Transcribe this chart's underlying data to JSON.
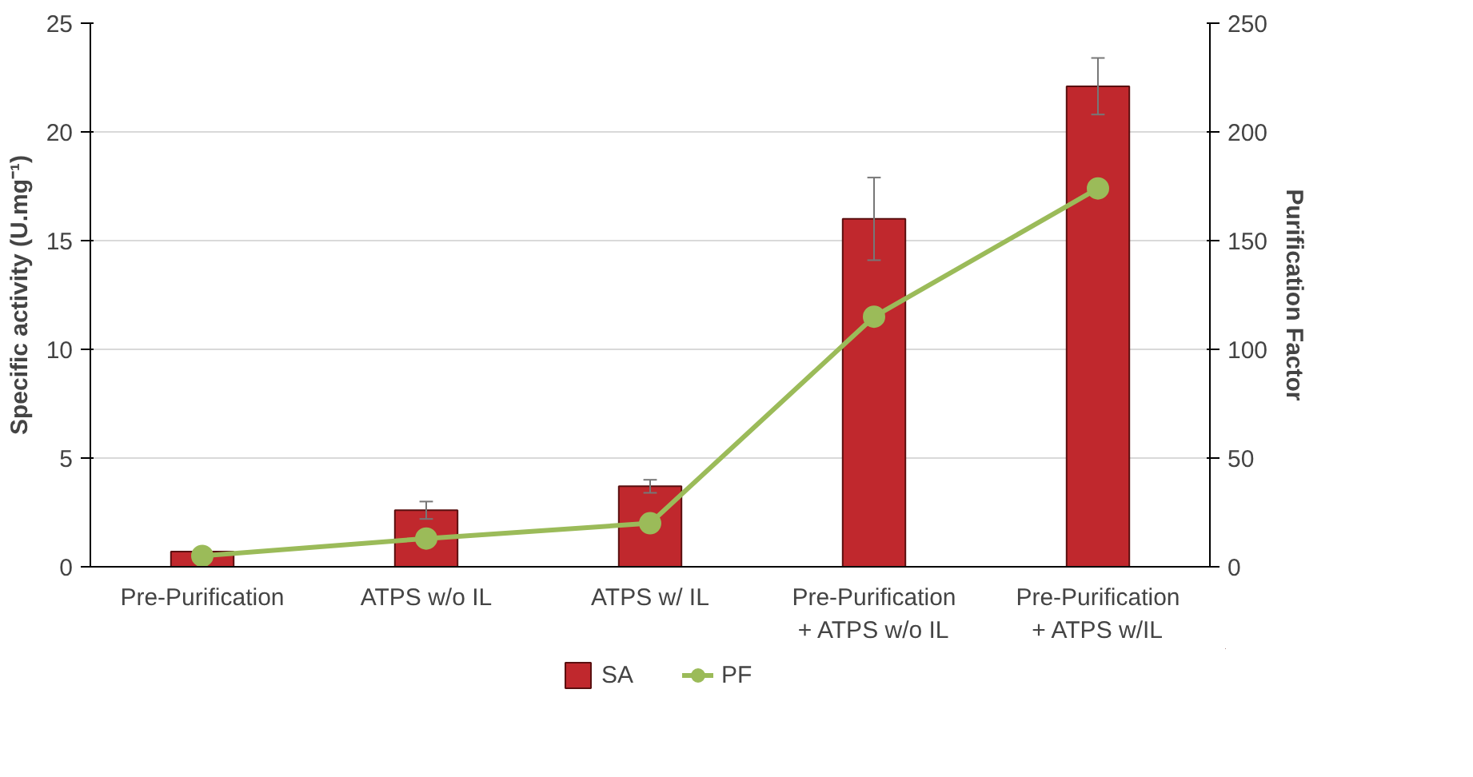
{
  "chart_data": {
    "type": "bar",
    "categories": [
      "Pre-Purification",
      "ATPS w/o IL",
      "ATPS w/ IL",
      "Pre-Purification\n+ ATPS w/o IL",
      "Pre-Purification\n+ ATPS w/IL"
    ],
    "ylabel": "Specific activity (U.mg⁻¹)",
    "y2label": "Purification Factor",
    "series": [
      {
        "name": "SA",
        "color": "#c0282d",
        "values": [
          0.7,
          2.6,
          3.7,
          16.0,
          22.1
        ],
        "errors": [
          null,
          0.4,
          0.3,
          1.9,
          1.3
        ]
      },
      {
        "name": "PF",
        "type": "line",
        "axis": "y2",
        "color": "#9bbb59",
        "values": [
          5,
          13,
          20,
          115,
          174
        ],
        "marker": "circle"
      }
    ],
    "ylim": [
      0,
      25
    ],
    "yticks": [
      0,
      5,
      10,
      15,
      20,
      25
    ],
    "y2lim": [
      0,
      250
    ],
    "y2ticks": [
      0,
      50,
      100,
      150,
      200,
      250
    ],
    "grid": "y",
    "legend": "bottom"
  }
}
